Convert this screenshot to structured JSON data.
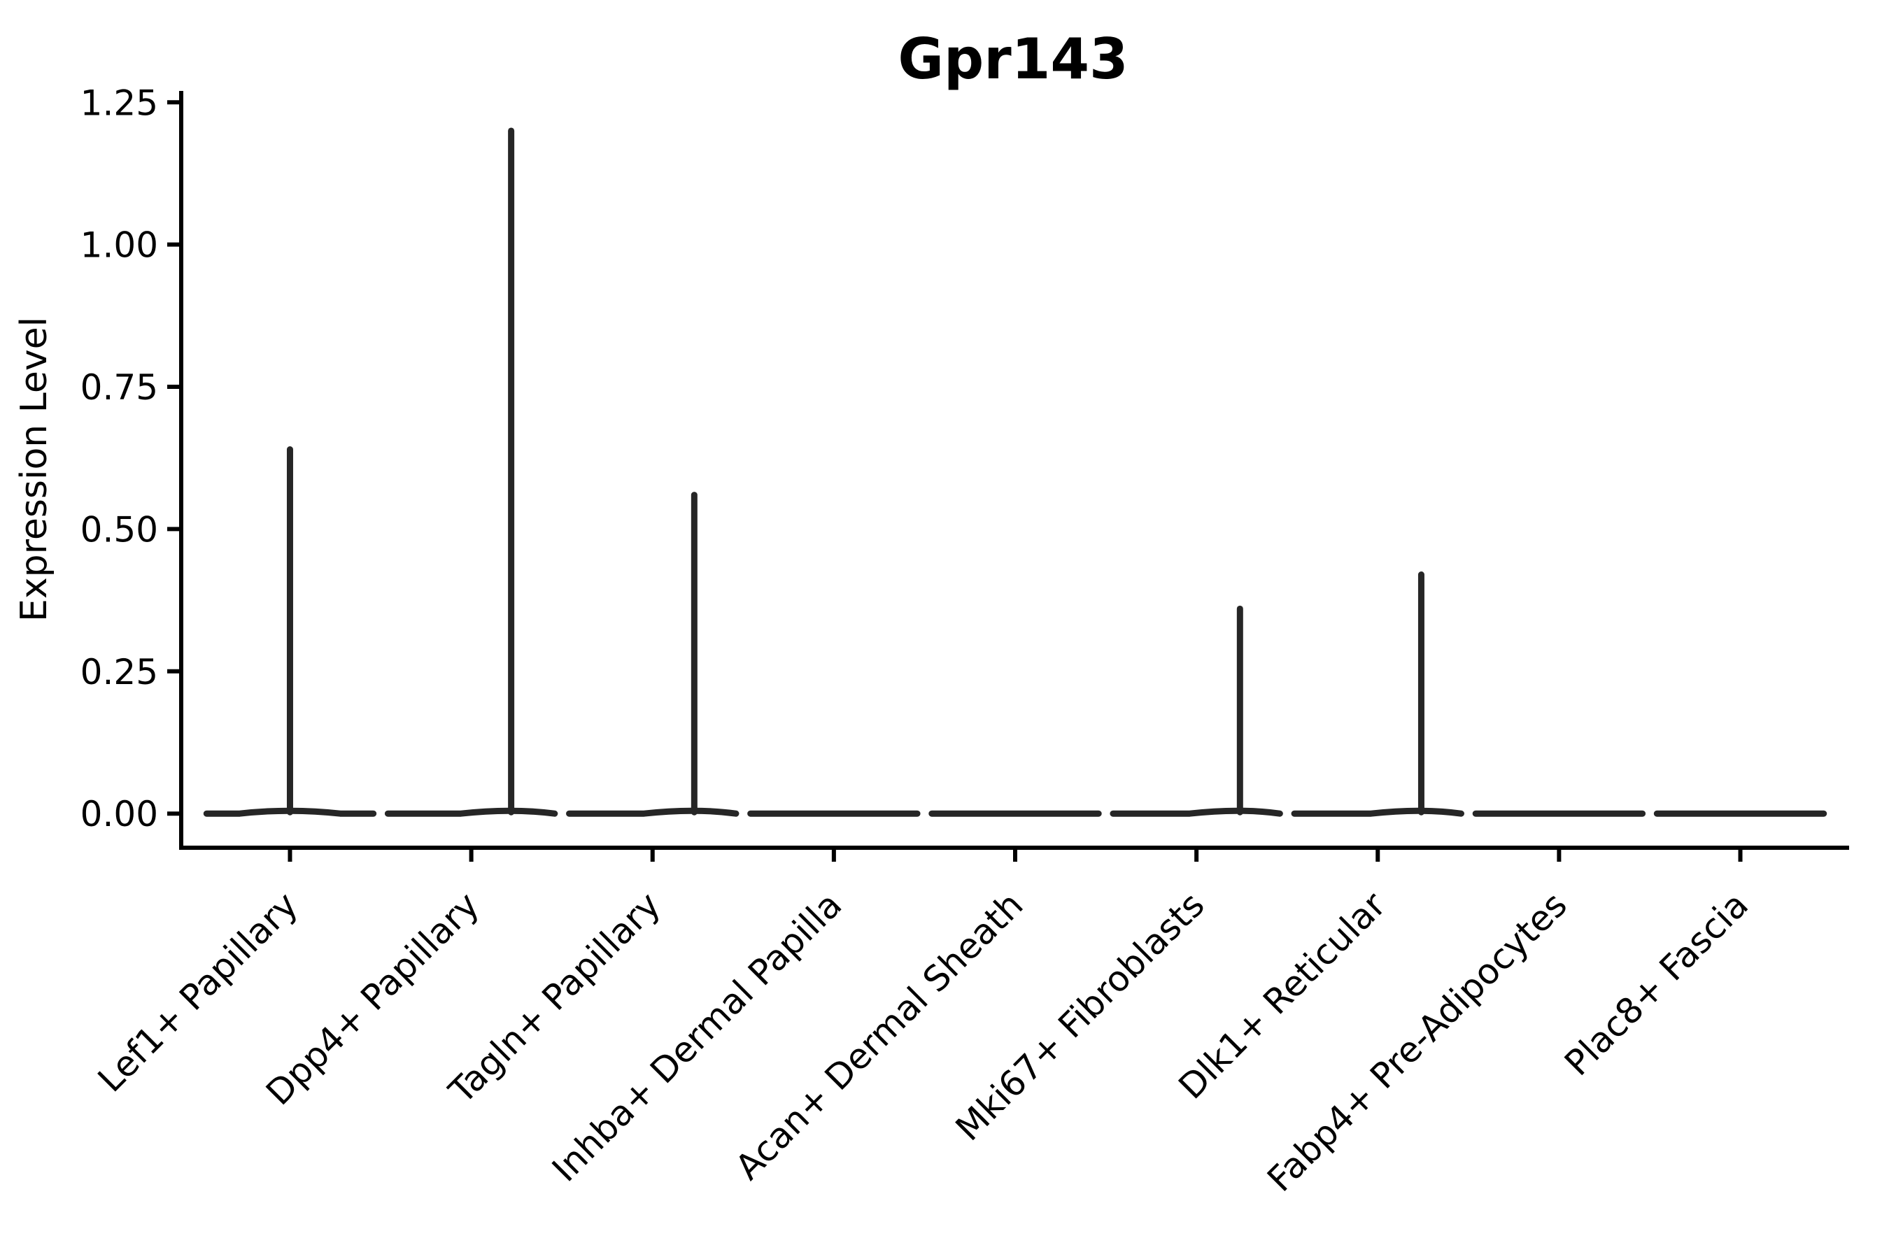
{
  "figure": {
    "background": "#ffffff"
  },
  "chart_data": {
    "type": "violin",
    "title": "Gpr143",
    "xlabel": "",
    "ylabel": "Expression Level",
    "categories": [
      "Lef1+ Papillary",
      "Dpp4+ Papillary",
      "Tagln+ Papillary",
      "Inhba+ Dermal Papilla",
      "Acan+ Dermal Sheath",
      "Mki67+ Fibroblasts",
      "Dlk1+ Reticular",
      "Fabp4+ Pre-Adipocytes",
      "Plac8+ Fascia"
    ],
    "violins": [
      {
        "category": "Lef1+ Papillary",
        "baseline": 0.0,
        "peak_value": 0.64,
        "peak_offset_frac": 0.0
      },
      {
        "category": "Dpp4+ Papillary",
        "baseline": 0.0,
        "peak_value": 1.2,
        "peak_offset_frac": 0.22
      },
      {
        "category": "Tagln+ Papillary",
        "baseline": 0.0,
        "peak_value": 0.56,
        "peak_offset_frac": 0.23
      },
      {
        "category": "Inhba+ Dermal Papilla",
        "baseline": 0.0,
        "peak_value": 0.0,
        "peak_offset_frac": 0.0
      },
      {
        "category": "Acan+ Dermal Sheath",
        "baseline": 0.0,
        "peak_value": 0.0,
        "peak_offset_frac": 0.0
      },
      {
        "category": "Mki67+ Fibroblasts",
        "baseline": 0.0,
        "peak_value": 0.36,
        "peak_offset_frac": 0.24
      },
      {
        "category": "Dlk1+ Reticular",
        "baseline": 0.0,
        "peak_value": 0.42,
        "peak_offset_frac": 0.24
      },
      {
        "category": "Fabp4+ Pre-Adipocytes",
        "baseline": 0.0,
        "peak_value": 0.0,
        "peak_offset_frac": 0.0
      },
      {
        "category": "Plac8+ Fascia",
        "baseline": 0.0,
        "peak_value": 0.0,
        "peak_offset_frac": 0.0
      }
    ],
    "yticks": [
      0.0,
      0.25,
      0.5,
      0.75,
      1.0,
      1.25
    ],
    "ytick_labels": [
      "0.00",
      "0.25",
      "0.50",
      "0.75",
      "1.00",
      "1.25"
    ],
    "ylim": [
      -0.06,
      1.27
    ],
    "grid": false,
    "legend": null,
    "violin_color": "#262626",
    "axis_color": "#000000",
    "xtick_rotation_deg": 45
  }
}
